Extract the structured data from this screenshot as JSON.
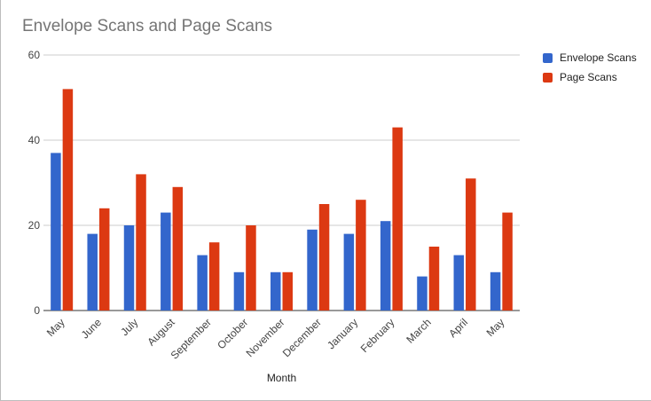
{
  "chart_data": {
    "type": "bar",
    "title": "Envelope Scans and Page Scans",
    "xlabel": "Month",
    "ylabel": "",
    "ylim": [
      0,
      60
    ],
    "yticks": [
      0,
      20,
      40,
      60
    ],
    "grid": true,
    "legend_position": "right",
    "categories": [
      "May",
      "June",
      "July",
      "August",
      "September",
      "October",
      "November",
      "December",
      "January",
      "February",
      "March",
      "April",
      "May"
    ],
    "series": [
      {
        "name": "Envelope Scans",
        "color": "#3366cc",
        "values": [
          37,
          18,
          20,
          23,
          13,
          9,
          9,
          19,
          18,
          21,
          8,
          13,
          9
        ]
      },
      {
        "name": "Page Scans",
        "color": "#dc3912",
        "values": [
          52,
          24,
          32,
          29,
          16,
          20,
          9,
          25,
          26,
          43,
          15,
          31,
          23
        ]
      }
    ]
  }
}
